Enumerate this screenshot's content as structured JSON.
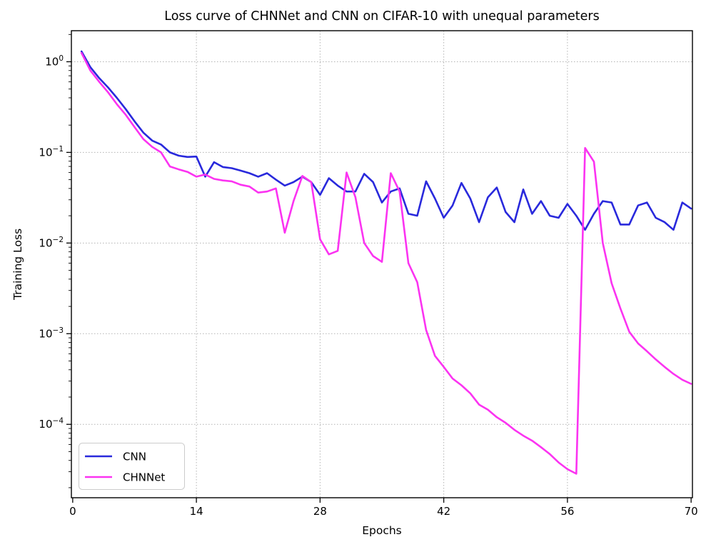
{
  "chart_data": {
    "type": "line",
    "title": "Loss curve of CHNNet and CNN on CIFAR-10 with unequal parameters",
    "xlabel": "Epochs",
    "ylabel": "Training Loss",
    "yscale": "log",
    "xlim": [
      -0.15,
      70.15
    ],
    "ylim": [
      1.55e-05,
      2.2
    ],
    "x_ticks": [
      0,
      14,
      28,
      42,
      56,
      70
    ],
    "y_tick_exponents": [
      0,
      -1,
      -2,
      -3,
      -4
    ],
    "y_tick_labels": [
      "10^0",
      "10^-1",
      "10^-2",
      "10^-3",
      "10^-4"
    ],
    "grid": true,
    "legend_position": "lower-left",
    "x": [
      1,
      2,
      3,
      4,
      5,
      6,
      7,
      8,
      9,
      10,
      11,
      12,
      13,
      14,
      15,
      16,
      17,
      18,
      19,
      20,
      21,
      22,
      23,
      24,
      25,
      26,
      27,
      28,
      29,
      30,
      31,
      32,
      33,
      34,
      35,
      36,
      37,
      38,
      39,
      40,
      41,
      42,
      43,
      44,
      45,
      46,
      47,
      48,
      49,
      50,
      51,
      52,
      53,
      54,
      55,
      56,
      57,
      58,
      59,
      60,
      61,
      62,
      63,
      64,
      65,
      66,
      67,
      68,
      69,
      70
    ],
    "series": [
      {
        "name": "CNN",
        "color": "#2929dc",
        "values": [
          1.3,
          0.87,
          0.66,
          0.52,
          0.4,
          0.3,
          0.22,
          0.165,
          0.135,
          0.122,
          0.1,
          0.092,
          0.089,
          0.09,
          0.054,
          0.078,
          0.069,
          0.067,
          0.063,
          0.059,
          0.054,
          0.059,
          0.05,
          0.043,
          0.047,
          0.054,
          0.047,
          0.034,
          0.052,
          0.043,
          0.037,
          0.037,
          0.058,
          0.047,
          0.028,
          0.037,
          0.04,
          0.021,
          0.02,
          0.048,
          0.031,
          0.019,
          0.026,
          0.046,
          0.031,
          0.017,
          0.032,
          0.041,
          0.022,
          0.017,
          0.039,
          0.021,
          0.029,
          0.02,
          0.019,
          0.027,
          0.02,
          0.014,
          0.021,
          0.029,
          0.028,
          0.016,
          0.016,
          0.026,
          0.028,
          0.019,
          0.017,
          0.014,
          0.028,
          0.024
        ]
      },
      {
        "name": "CHNNet",
        "color": "#fb33f1",
        "values": [
          1.25,
          0.8,
          0.6,
          0.46,
          0.34,
          0.26,
          0.19,
          0.14,
          0.115,
          0.1,
          0.07,
          0.065,
          0.061,
          0.054,
          0.057,
          0.051,
          0.049,
          0.048,
          0.044,
          0.042,
          0.036,
          0.037,
          0.04,
          0.013,
          0.029,
          0.055,
          0.047,
          0.011,
          0.0075,
          0.0082,
          0.06,
          0.032,
          0.01,
          0.0072,
          0.0062,
          0.059,
          0.037,
          0.006,
          0.0037,
          0.0011,
          0.00057,
          0.00043,
          0.00032,
          0.00027,
          0.00022,
          0.000165,
          0.000145,
          0.00012,
          0.000104,
          8.7e-05,
          7.5e-05,
          6.6e-05,
          5.6e-05,
          4.7e-05,
          3.8e-05,
          3.2e-05,
          2.85e-05,
          0.112,
          0.079,
          0.01,
          0.0036,
          0.0019,
          0.00105,
          0.00078,
          0.00064,
          0.00052,
          0.00043,
          0.00036,
          0.00031,
          0.00028
        ]
      }
    ],
    "colors": {
      "grid": "#b3b3b3",
      "spine": "#000000",
      "background": "#ffffff",
      "legend_border": "#cccccc"
    }
  }
}
